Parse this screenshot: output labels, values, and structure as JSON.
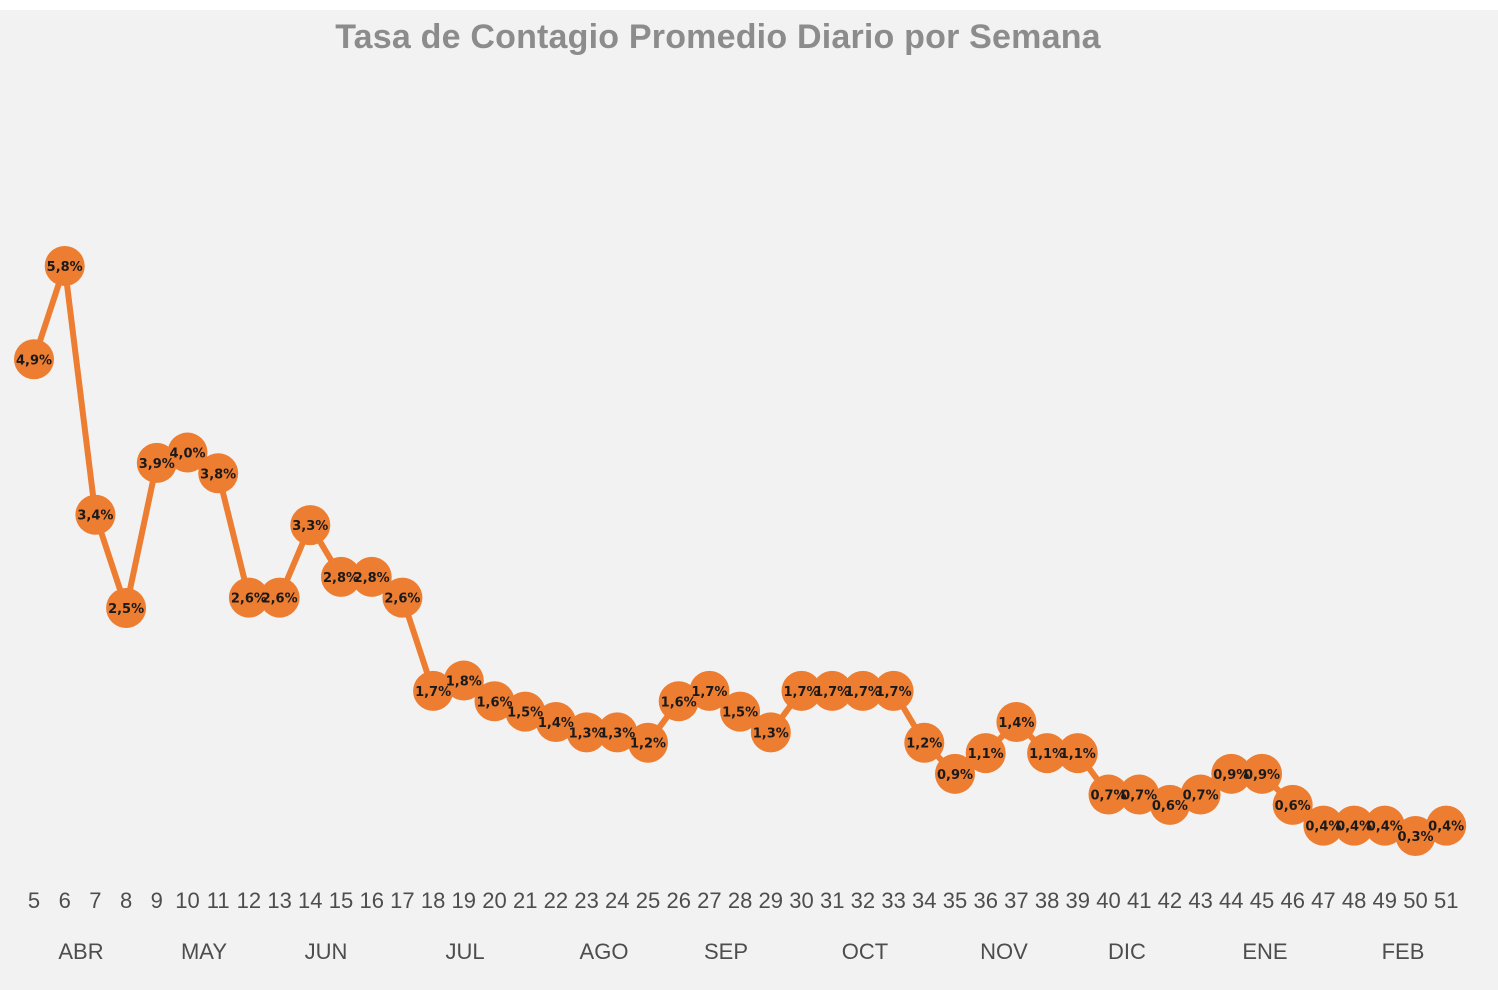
{
  "chart_data": {
    "type": "line",
    "title": "Tasa de Contagio Promedio Diario por Semana",
    "x": [
      "5",
      "6",
      "7",
      "8",
      "9",
      "10",
      "11",
      "12",
      "13",
      "14",
      "15",
      "16",
      "17",
      "18",
      "19",
      "20",
      "21",
      "22",
      "23",
      "24",
      "25",
      "26",
      "27",
      "28",
      "29",
      "30",
      "31",
      "32",
      "33",
      "34",
      "35",
      "36",
      "37",
      "38",
      "39",
      "40",
      "41",
      "42",
      "43",
      "44",
      "45",
      "46",
      "47",
      "48",
      "49",
      "50",
      "51"
    ],
    "months": [
      "ABR",
      "MAY",
      "JUN",
      "JUL",
      "AGO",
      "SEP",
      "OCT",
      "NOV",
      "DIC",
      "ENE",
      "FEB"
    ],
    "series": [
      {
        "values": [
          4.9,
          5.8,
          3.4,
          2.5,
          3.9,
          4.0,
          3.8,
          2.6,
          2.6,
          3.3,
          2.8,
          2.8,
          2.6,
          1.7,
          1.8,
          1.6,
          1.5,
          1.4,
          1.3,
          1.3,
          1.2,
          1.6,
          1.7,
          1.5,
          1.3,
          1.7,
          1.7,
          1.7,
          1.7,
          1.2,
          0.9,
          1.1,
          1.4,
          1.1,
          1.1,
          0.7,
          0.7,
          0.6,
          0.7,
          0.9,
          0.9,
          0.6,
          0.4,
          0.4,
          0.4,
          0.3,
          0.4
        ],
        "labels": [
          "4,9%",
          "5,8%",
          "3,4%",
          "2,5%",
          "3,9%",
          "4,0%",
          "3,8%",
          "2,6%",
          "2,6%",
          "3,3%",
          "2,8%",
          "2,8%",
          "2,6%",
          "1,7%",
          "1,8%",
          "1,6%",
          "1,5%",
          "1,4%",
          "1,3%",
          "1,3%",
          "1,2%",
          "1,6%",
          "1,7%",
          "1,5%",
          "1,3%",
          "1,7%",
          "1,7%",
          "1,7%",
          "1,7%",
          "1,2%",
          "0,9%",
          "1,1%",
          "1,4%",
          "1,1%",
          "1,1%",
          "0,7%",
          "0,7%",
          "0,6%",
          "0,7%",
          "0,9%",
          "0,9%",
          "0,6%",
          "0,4%",
          "0,4%",
          "0,4%",
          "0,3%",
          "0,4%"
        ]
      }
    ],
    "colors": {
      "line": "#ed7d31",
      "marker": "#ed7d31",
      "background": "#f2f2f2"
    },
    "grid": false,
    "legend": "none"
  }
}
